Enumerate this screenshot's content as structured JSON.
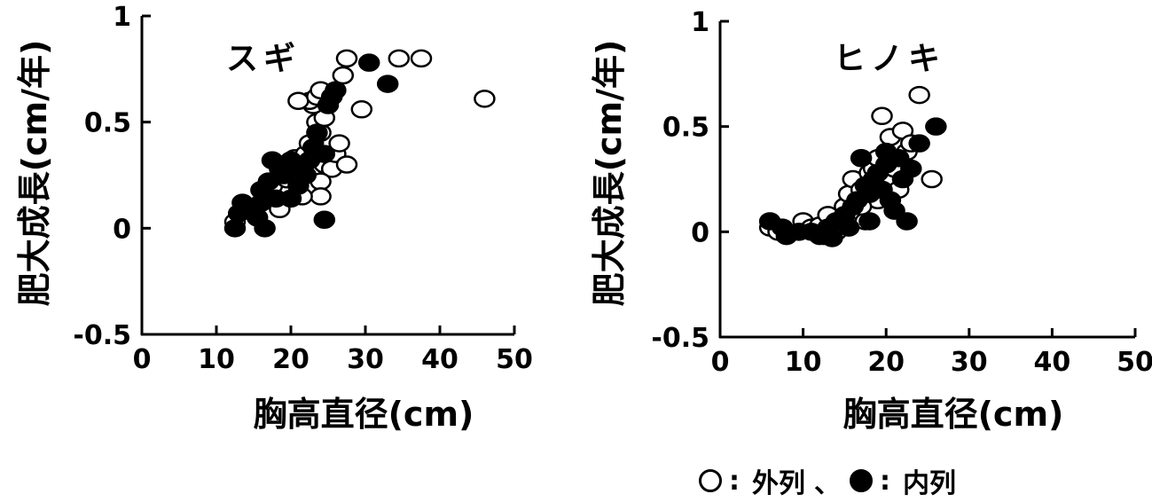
{
  "chart_data": [
    {
      "type": "scatter",
      "title": "スギ",
      "xlabel": "胸高直径(cm)",
      "ylabel": "肥大成長(cm/年)",
      "xlim": [
        0,
        50
      ],
      "ylim": [
        -0.5,
        1
      ],
      "xticks": [
        "0",
        "10",
        "20",
        "30",
        "40",
        "50"
      ],
      "yticks": [
        "-0.5",
        "0",
        "0.5",
        "1"
      ],
      "grid": false,
      "series": [
        {
          "name": "外列",
          "marker": "open-circle",
          "points": [
            [
              12.5,
              0.03
            ],
            [
              18.5,
              0.09
            ],
            [
              17.5,
              0.2
            ],
            [
              19.5,
              0.23
            ],
            [
              20,
              0.28
            ],
            [
              20.5,
              0.33
            ],
            [
              21,
              0.3
            ],
            [
              22,
              0.35
            ],
            [
              23,
              0.4
            ],
            [
              24,
              0.45
            ],
            [
              23.5,
              0.5
            ],
            [
              24.5,
              0.52
            ],
            [
              23,
              0.58
            ],
            [
              22.5,
              0.6
            ],
            [
              21,
              0.6
            ],
            [
              23.5,
              0.62
            ],
            [
              24,
              0.65
            ],
            [
              24.5,
              0.3
            ],
            [
              25.5,
              0.28
            ],
            [
              26,
              0.35
            ],
            [
              26.5,
              0.4
            ],
            [
              27.5,
              0.3
            ],
            [
              27,
              0.72
            ],
            [
              27.5,
              0.8
            ],
            [
              29.5,
              0.56
            ],
            [
              34.5,
              0.8
            ],
            [
              37.5,
              0.8
            ],
            [
              46,
              0.61
            ],
            [
              24,
              0.22
            ],
            [
              22.5,
              0.4
            ],
            [
              24,
              0.15
            ],
            [
              21.5,
              0.15
            ]
          ]
        },
        {
          "name": "内列",
          "marker": "filled-circle",
          "points": [
            [
              12.5,
              0.0
            ],
            [
              13,
              0.07
            ],
            [
              13.5,
              0.12
            ],
            [
              14.5,
              0.1
            ],
            [
              15.5,
              0.05
            ],
            [
              16,
              0.12
            ],
            [
              16.5,
              0.0
            ],
            [
              16,
              0.18
            ],
            [
              17,
              0.22
            ],
            [
              17.5,
              0.32
            ],
            [
              18.5,
              0.28
            ],
            [
              19,
              0.25
            ],
            [
              20,
              0.32
            ],
            [
              21,
              0.2
            ],
            [
              21.5,
              0.28
            ],
            [
              22.5,
              0.32
            ],
            [
              23,
              0.38
            ],
            [
              23.5,
              0.45
            ],
            [
              24.5,
              0.35
            ],
            [
              25,
              0.58
            ],
            [
              25.5,
              0.62
            ],
            [
              26,
              0.65
            ],
            [
              30.5,
              0.78
            ],
            [
              33,
              0.68
            ],
            [
              24.5,
              0.04
            ],
            [
              20,
              0.14
            ],
            [
              18,
              0.14
            ],
            [
              22,
              0.25
            ]
          ]
        }
      ]
    },
    {
      "type": "scatter",
      "title": "ヒノキ",
      "xlabel": "胸高直径(cm)",
      "ylabel": "肥大成長(cm/年)",
      "xlim": [
        0,
        50
      ],
      "ylim": [
        -0.5,
        1
      ],
      "xticks": [
        "0",
        "10",
        "20",
        "30",
        "40",
        "50"
      ],
      "yticks": [
        "-0.5",
        "0",
        "0.5",
        "1"
      ],
      "grid": false,
      "series": [
        {
          "name": "外列",
          "marker": "open-circle",
          "points": [
            [
              6,
              0.02
            ],
            [
              7,
              0.0
            ],
            [
              10,
              0.05
            ],
            [
              11,
              0.02
            ],
            [
              12,
              0.03
            ],
            [
              13,
              0.08
            ],
            [
              14,
              0.05
            ],
            [
              15,
              0.12
            ],
            [
              15.5,
              0.18
            ],
            [
              16,
              0.25
            ],
            [
              16.5,
              0.1
            ],
            [
              17,
              0.2
            ],
            [
              17.5,
              0.05
            ],
            [
              18,
              0.28
            ],
            [
              18.5,
              0.3
            ],
            [
              19,
              0.35
            ],
            [
              19.5,
              0.55
            ],
            [
              20,
              0.25
            ],
            [
              20.5,
              0.45
            ],
            [
              21,
              0.3
            ],
            [
              21.5,
              0.2
            ],
            [
              22,
              0.48
            ],
            [
              22.5,
              0.38
            ],
            [
              23,
              0.42
            ],
            [
              24,
              0.65
            ],
            [
              25.5,
              0.25
            ],
            [
              19,
              0.15
            ],
            [
              14,
              0.0
            ],
            [
              12.5,
              -0.02
            ],
            [
              17,
              0.12
            ]
          ]
        },
        {
          "name": "内列",
          "marker": "filled-circle",
          "points": [
            [
              6,
              0.05
            ],
            [
              7.5,
              0.02
            ],
            [
              8,
              -0.02
            ],
            [
              9.5,
              0.0
            ],
            [
              11,
              0.0
            ],
            [
              12,
              -0.02
            ],
            [
              13,
              0.02
            ],
            [
              13.5,
              -0.03
            ],
            [
              14,
              0.05
            ],
            [
              15,
              0.08
            ],
            [
              15.5,
              0.02
            ],
            [
              16,
              0.12
            ],
            [
              16.5,
              0.15
            ],
            [
              17,
              0.35
            ],
            [
              17.5,
              0.22
            ],
            [
              18,
              0.18
            ],
            [
              18.5,
              0.25
            ],
            [
              19,
              0.28
            ],
            [
              19.5,
              0.2
            ],
            [
              20,
              0.32
            ],
            [
              20.5,
              0.15
            ],
            [
              21,
              0.1
            ],
            [
              21.5,
              0.35
            ],
            [
              22,
              0.25
            ],
            [
              22.5,
              0.05
            ],
            [
              23,
              0.3
            ],
            [
              24,
              0.42
            ],
            [
              26,
              0.5
            ],
            [
              20,
              0.38
            ],
            [
              18,
              0.05
            ]
          ]
        }
      ]
    }
  ],
  "legend": {
    "open_label": "外列",
    "filled_label": "内列",
    "colon": ":",
    "separator": "、"
  }
}
